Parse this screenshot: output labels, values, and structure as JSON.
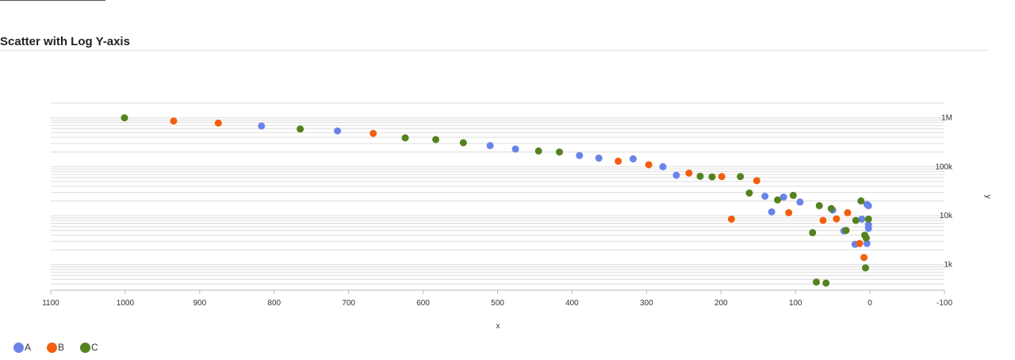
{
  "header": {
    "title": "Scatter with Log Y-axis"
  },
  "colors": {
    "A": "#6a83ea",
    "B": "#f25f0e",
    "C": "#54821f",
    "grid": "#dcdcdc"
  },
  "chart_data": {
    "type": "scatter",
    "title": "Scatter with Log Y-axis",
    "xlabel": "x",
    "ylabel": "y",
    "x_reversed": true,
    "xlim": [
      1100,
      -100
    ],
    "y_scale": "log",
    "ylim": [
      300,
      2000000
    ],
    "x_ticks": [
      1100,
      1000,
      900,
      800,
      700,
      600,
      500,
      400,
      300,
      200,
      100,
      0,
      -100
    ],
    "y_ticks": [
      {
        "value": 1000000,
        "label": "1M"
      },
      {
        "value": 100000,
        "label": "100k"
      },
      {
        "value": 10000,
        "label": "10k"
      },
      {
        "value": 1000,
        "label": "1k"
      }
    ],
    "grid": true,
    "legend": "bottom-left",
    "series": [
      {
        "name": "A",
        "points": [
          [
            817,
            680000
          ],
          [
            715,
            540000
          ],
          [
            510,
            270000
          ],
          [
            476,
            230000
          ],
          [
            390,
            170000
          ],
          [
            364,
            150000
          ],
          [
            318,
            145000
          ],
          [
            278,
            100000
          ],
          [
            260,
            67000
          ],
          [
            141,
            25000
          ],
          [
            132,
            12000
          ],
          [
            116,
            24000
          ],
          [
            94,
            19000
          ],
          [
            50,
            13000
          ],
          [
            4,
            17000
          ],
          [
            2,
            16000
          ],
          [
            2,
            6500
          ],
          [
            2,
            5500
          ],
          [
            11,
            8500
          ],
          [
            35,
            4900
          ],
          [
            20,
            2600
          ],
          [
            4,
            2700
          ]
        ]
      },
      {
        "name": "B",
        "points": [
          [
            935,
            860000
          ],
          [
            875,
            780000
          ],
          [
            667,
            480000
          ],
          [
            338,
            130000
          ],
          [
            297,
            110000
          ],
          [
            243,
            74000
          ],
          [
            199,
            63000
          ],
          [
            152,
            52000
          ],
          [
            186,
            8500
          ],
          [
            109,
            11500
          ],
          [
            63,
            8000
          ],
          [
            45,
            8600
          ],
          [
            30,
            11500
          ],
          [
            14,
            2700
          ],
          [
            8,
            1400
          ]
        ]
      },
      {
        "name": "C",
        "points": [
          [
            1001,
            1000000
          ],
          [
            765,
            590000
          ],
          [
            624,
            390000
          ],
          [
            583,
            360000
          ],
          [
            546,
            310000
          ],
          [
            445,
            210000
          ],
          [
            417,
            200000
          ],
          [
            228,
            64000
          ],
          [
            212,
            62000
          ],
          [
            174,
            63000
          ],
          [
            162,
            29000
          ],
          [
            124,
            21000
          ],
          [
            103,
            26000
          ],
          [
            68,
            16000
          ],
          [
            52,
            14000
          ],
          [
            12,
            20000
          ],
          [
            2,
            8500
          ],
          [
            19,
            8000
          ],
          [
            32,
            5000
          ],
          [
            77,
            4500
          ],
          [
            7,
            4000
          ],
          [
            5,
            3500
          ],
          [
            6,
            860
          ],
          [
            72,
            440
          ],
          [
            59,
            420
          ]
        ]
      }
    ]
  }
}
